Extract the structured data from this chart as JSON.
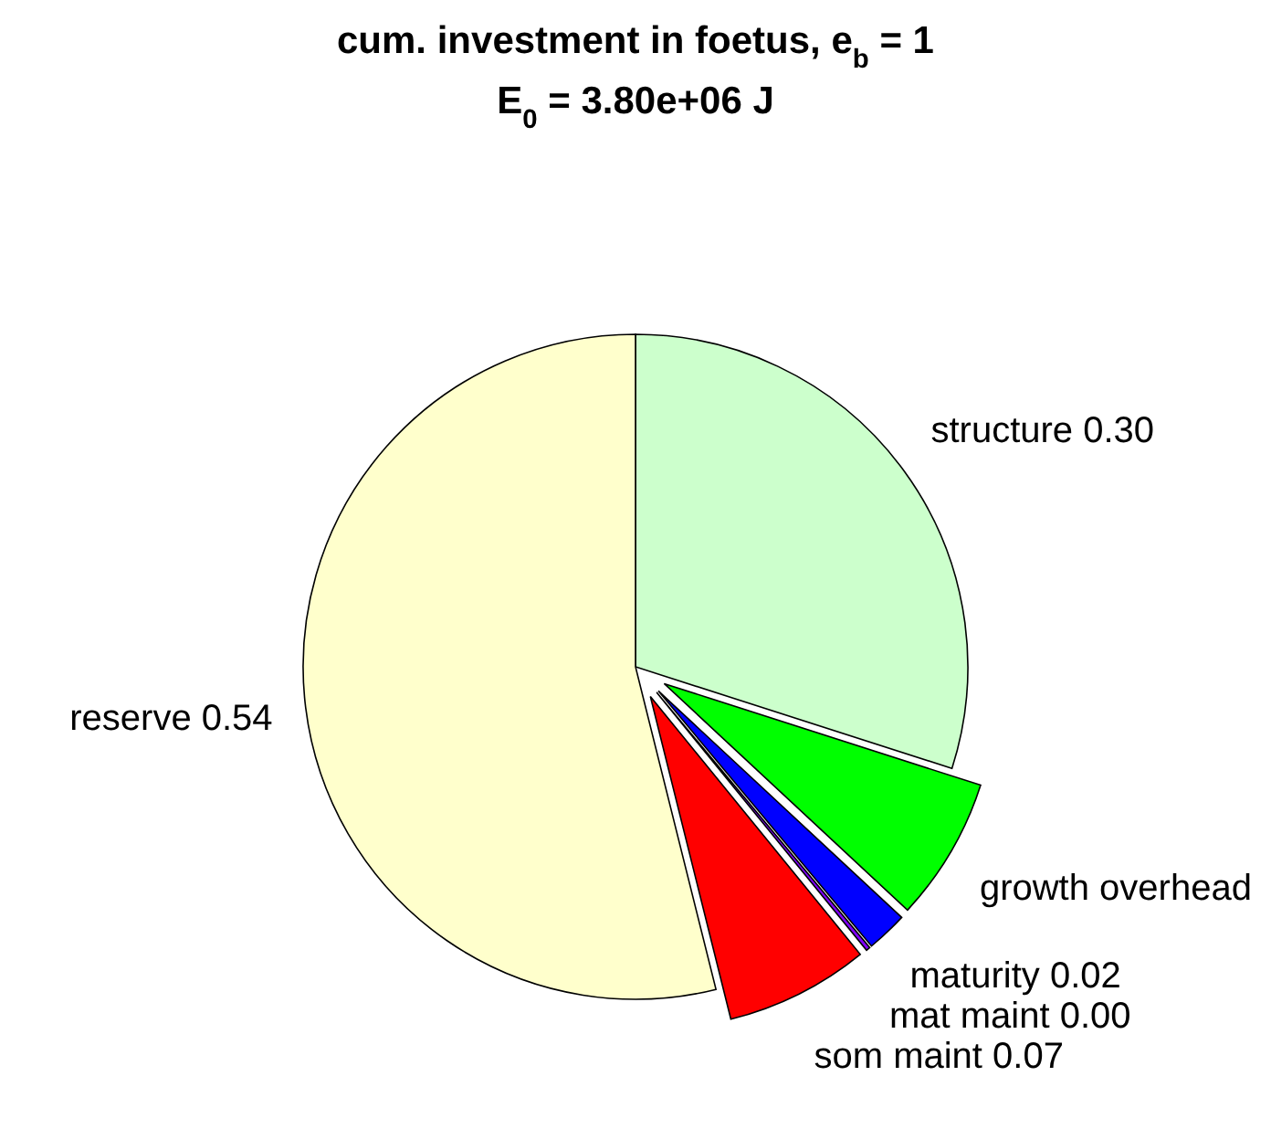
{
  "chart_data": {
    "type": "pie",
    "title": "cum. investment in foetus, e$_{b}$ = 1",
    "subtitle": "E$_{0}$ = 3.80e+06 J",
    "categories": [
      "structure",
      "growth overhead",
      "maturity",
      "mat maint",
      "som maint",
      "reserve"
    ],
    "values": [
      0.3,
      0.07,
      0.02,
      0.002,
      0.07,
      0.54
    ],
    "value_labels": [
      "0.30",
      null,
      "0.02",
      "0.00",
      "0.07",
      "0.54"
    ],
    "colors": [
      "#ccffcc",
      "#00ff00",
      "#0000ff",
      "#8000ff",
      "#ff0000",
      "#ffffcc"
    ]
  }
}
